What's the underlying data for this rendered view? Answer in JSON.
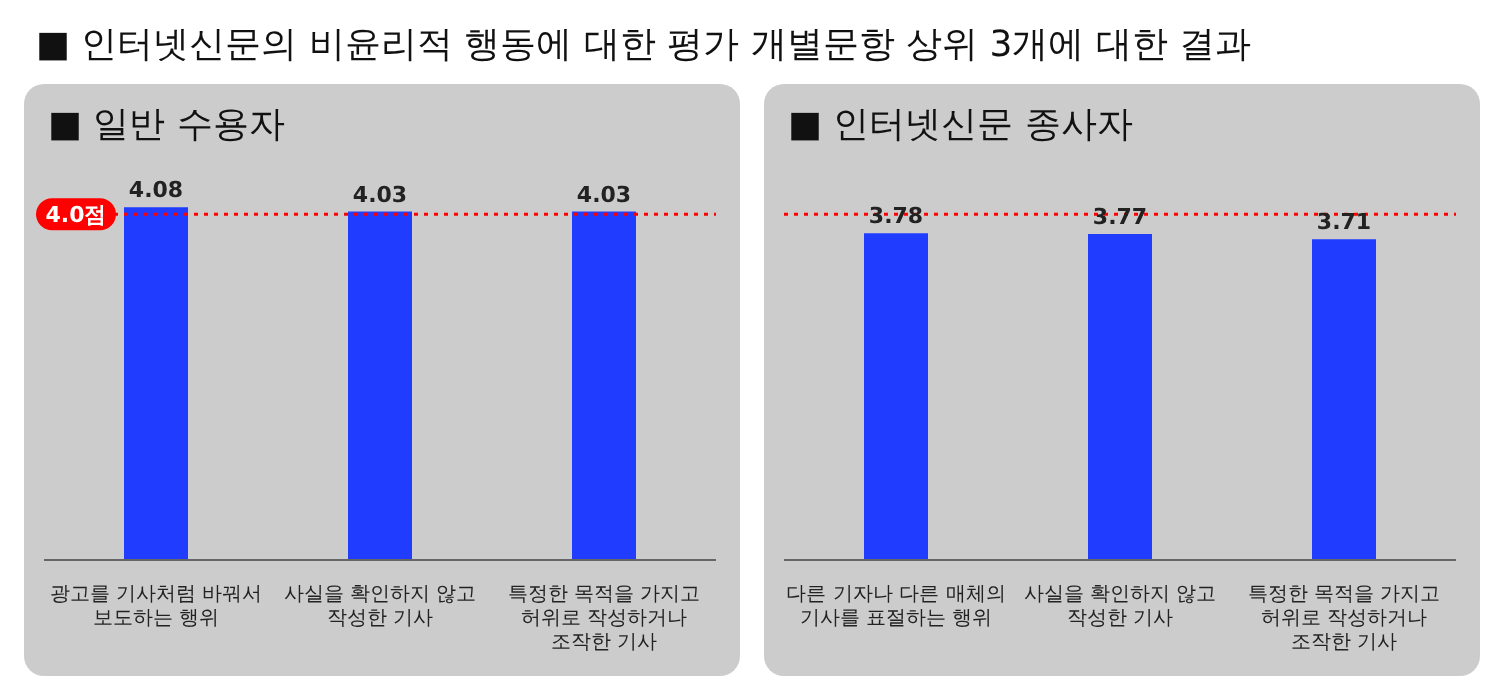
{
  "chart_data": [
    {
      "type": "bar",
      "title": "■ 인터넷신문의 비윤리적 행동에 대한 평가 개별문항 상위 3개에 대한 결과",
      "subtitle": "■ 일반 수용자",
      "categories": [
        "광고를 기사처럼 바꿔서\n보도하는 행위",
        "사실을 확인하지 않고\n작성한 기사",
        "특정한 목적을 가지고\n허위로 작성하거나\n조작한 기사"
      ],
      "values": [
        4.08,
        4.03,
        4.03
      ],
      "color": "#1f3cff",
      "data_labels": true,
      "ref_lines": [
        {
          "axis": "y",
          "value": 4.0,
          "label": "4.0점",
          "color": "#ff0000",
          "line_style": "dotted"
        }
      ]
    },
    {
      "type": "bar",
      "subtitle": "■ 인터넷신문 종사자",
      "categories": [
        "다른 기자나 다른 매체의\n기사를 표절하는 행위",
        "사실을 확인하지 않고\n작성한 기사",
        "특정한 목적을 가지고\n허위로 작성하거나\n조작한 기사"
      ],
      "values": [
        3.78,
        3.77,
        3.71
      ],
      "color": "#1f3cff",
      "data_labels": true,
      "ref_lines": [
        {
          "axis": "y",
          "value": 4.0,
          "color": "#ff0000",
          "line_style": "dotted"
        }
      ]
    }
  ]
}
